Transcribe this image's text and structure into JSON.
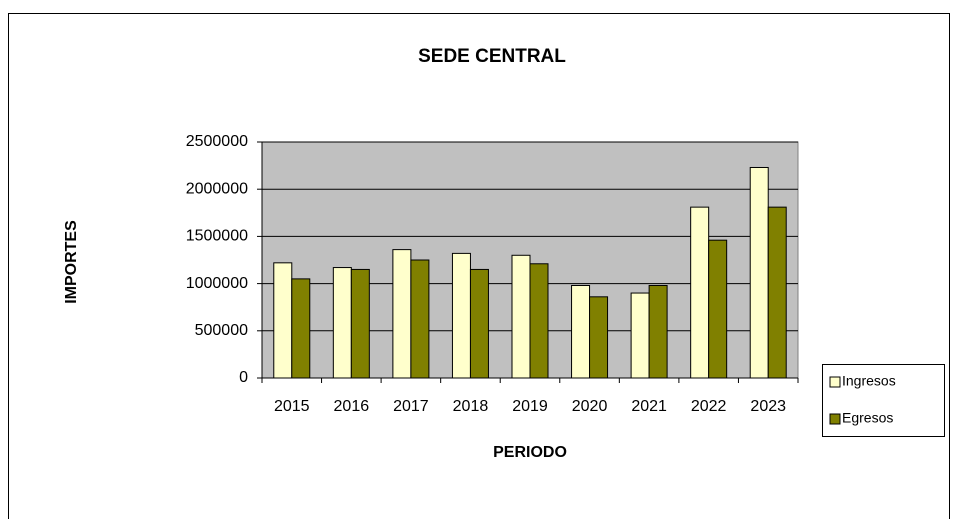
{
  "chart_data": {
    "type": "bar",
    "title": "SEDE CENTRAL",
    "x_label": "PERIODO",
    "y_label": "IMPORTES",
    "categories": [
      "2015",
      "2016",
      "2017",
      "2018",
      "2019",
      "2020",
      "2021",
      "2022",
      "2023"
    ],
    "series": [
      {
        "name": "Ingresos",
        "color": "#ffffcc",
        "values": [
          1220000,
          1170000,
          1360000,
          1320000,
          1300000,
          980000,
          900000,
          1810000,
          2230000
        ]
      },
      {
        "name": "Egresos",
        "color": "#808000",
        "values": [
          1050000,
          1150000,
          1250000,
          1150000,
          1210000,
          860000,
          980000,
          1460000,
          1810000
        ]
      }
    ],
    "ylim": [
      0,
      2500000
    ],
    "yticks": [
      0,
      500000,
      1000000,
      1500000,
      2000000,
      2500000
    ],
    "grid": true,
    "plot_background": "#c0c0c0",
    "legend": "right"
  }
}
